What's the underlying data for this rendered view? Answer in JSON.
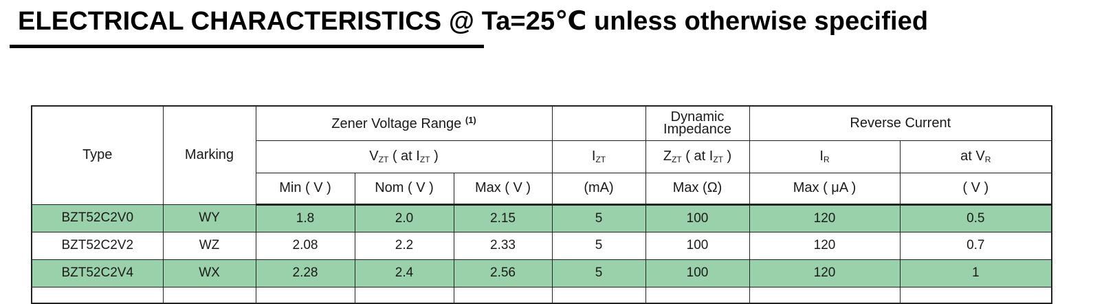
{
  "document": {
    "title": "ELECTRICAL CHARACTERISTICS @ Ta=25℃ unless otherwise specified"
  },
  "table": {
    "headers": {
      "type": "Type",
      "marking": "Marking",
      "zener_voltage_range": "Zener Voltage Range",
      "zener_note": "(1)",
      "dynamic_impedance_line1": "Dynamic",
      "dynamic_impedance_line2": "Impedance",
      "reverse_current": "Reverse Current",
      "vzt_main": "V",
      "vzt_sub": "ZT",
      "vzt_mid": " ( at I",
      "vzt_isub": "ZT",
      "vzt_end": " )",
      "izt_main": "I",
      "izt_sub": "ZT",
      "zzt_main": "Z",
      "zzt_sub": "ZT",
      "zzt_mid": " ( at  I",
      "zzt_isub": "ZT",
      "zzt_end": " )",
      "ir_main": "I",
      "ir_sub": "R",
      "atvr_main": "at  V",
      "atvr_sub": "R",
      "min_v": "Min ( V )",
      "nom_v": "Nom ( V )",
      "max_v": "Max ( V )",
      "ma": "(mA)",
      "max_ohm": "Max (Ω)",
      "max_ua": "Max ( μA )",
      "v_unit": "( V )"
    },
    "rows": [
      {
        "type": "BZT52C2V0",
        "marking": "WY",
        "min": "1.8",
        "nom": "2.0",
        "max": "2.15",
        "izt": "5",
        "zzt": "100",
        "ir": "120",
        "vr": "0.5"
      },
      {
        "type": "BZT52C2V2",
        "marking": "WZ",
        "min": "2.08",
        "nom": "2.2",
        "max": "2.33",
        "izt": "5",
        "zzt": "100",
        "ir": "120",
        "vr": "0.7"
      },
      {
        "type": "BZT52C2V4",
        "marking": "WX",
        "min": "2.28",
        "nom": "2.4",
        "max": "2.56",
        "izt": "5",
        "zzt": "100",
        "ir": "120",
        "vr": "1"
      }
    ],
    "row_shading": [
      "#99d1aa",
      "#ffffff",
      "#99d1aa"
    ]
  }
}
